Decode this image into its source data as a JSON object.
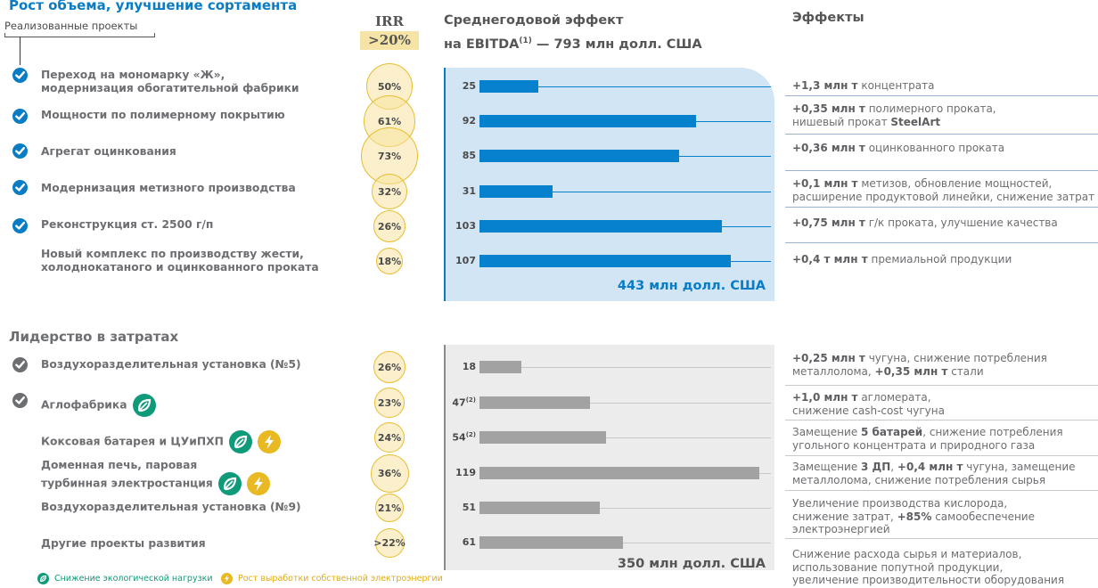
{
  "colors": {
    "accent_blue": "#0a7cc4",
    "bar_blue": "#0581ce",
    "panel_blue": "#d1e5f4",
    "bar_gray": "#a2a2a2",
    "panel_gray": "#ececec",
    "irr_yellow": "#e7bd2e",
    "eco_green": "#0f9a7a",
    "energy_yellow": "#e9b923"
  },
  "header": {
    "irr_title": "IRR",
    "irr_threshold": ">20%",
    "ebitda_line1": "Среднегодовой эффект",
    "ebitda_line2_pre": "на EBITDA",
    "ebitda_footnote": "(1)",
    "ebitda_line2_post": " — 793 млн долл. США",
    "effects_title": "Эффекты"
  },
  "section1": {
    "title": "Рост объема, улучшение сортамента",
    "realized_label": "Реализованные проекты",
    "total": "443 млн долл. США"
  },
  "section2": {
    "title": "Лидерство в затратах",
    "total": "350 млн долл. США"
  },
  "legend": {
    "eco": "Снижение экологической нагрузки",
    "energy": "Рост выработки собственной электроэнергии"
  },
  "chart_data": [
    {
      "type": "bar",
      "title": "Рост объема, улучшение сортамента",
      "xlabel": "Среднегодовой эффект на EBITDA, млн долл. США",
      "orientation": "horizontal",
      "categories": [
        "Переход на мономарку «Ж», модернизация обогатительной фабрики",
        "Мощности по полимерному покрытию",
        "Агрегат оцинкования",
        "Модернизация метизного производства",
        "Реконструкция ст. 2500 г/п",
        "Новый комплекс по производству жести, холоднокатаного и оцинкованного проката"
      ],
      "values": [
        25,
        92,
        85,
        31,
        103,
        107
      ],
      "value_labels": [
        "25",
        "92",
        "85",
        "31",
        "103",
        "107"
      ],
      "irr": [
        "50%",
        "61%",
        "73%",
        "32%",
        "26%",
        "18%"
      ],
      "irr_values": [
        50,
        61,
        73,
        32,
        26,
        18
      ],
      "realized": [
        true,
        true,
        true,
        true,
        true,
        false
      ],
      "total_label": "443 млн долл. США",
      "xlim": [
        0,
        119
      ]
    },
    {
      "type": "bar",
      "title": "Лидерство в затратах",
      "xlabel": "Среднегодовой эффект на EBITDA, млн долл. США",
      "orientation": "horizontal",
      "categories": [
        "Воздухоразделительная установка (№5)",
        "Аглофабрика",
        "Коксовая батарея и ЦУиПХП",
        "Доменная печь, паровая турбинная электростанция",
        "Воздухоразделительная установка (№9)",
        "Другие проекты развития"
      ],
      "values": [
        18,
        47,
        54,
        119,
        51,
        61
      ],
      "value_labels": [
        "18",
        "47",
        "54",
        "119",
        "51",
        "61"
      ],
      "value_footnotes": [
        "",
        "(2)",
        "(2)",
        "",
        "",
        ""
      ],
      "irr": [
        "26%",
        "23%",
        "24%",
        "36%",
        "21%",
        ">22%"
      ],
      "irr_values": [
        26,
        23,
        24,
        36,
        21,
        22
      ],
      "realized": [
        true,
        true,
        false,
        false,
        false,
        false
      ],
      "total_label": "350 млн долл. США",
      "xlim": [
        0,
        119
      ]
    }
  ],
  "projects1": [
    {
      "name_lines": [
        "Переход на мономарку «Ж»,",
        "модернизация обогатительной фабрики"
      ],
      "eco": false,
      "energy": false,
      "effect_html": [
        [
          "b",
          "+1,3 млн т"
        ],
        [
          "t",
          " концентрата"
        ]
      ]
    },
    {
      "name_lines": [
        "Мощности по полимерному покрытию"
      ],
      "eco": false,
      "energy": false,
      "effect_html": [
        [
          "b",
          "+0,35 млн т"
        ],
        [
          "t",
          " полимерного проката,"
        ],
        [
          "br",
          ""
        ],
        [
          "t",
          "нишевый прокат "
        ],
        [
          "b",
          "SteelArt"
        ]
      ]
    },
    {
      "name_lines": [
        "Агрегат оцинкования"
      ],
      "eco": false,
      "energy": false,
      "effect_html": [
        [
          "b",
          "+0,36 млн т"
        ],
        [
          "t",
          " оцинкованного проката"
        ]
      ]
    },
    {
      "name_lines": [
        "Модернизация метизного производства"
      ],
      "eco": false,
      "energy": false,
      "effect_html": [
        [
          "b",
          "+0,1 млн т"
        ],
        [
          "t",
          " метизов, обновление мощностей,"
        ],
        [
          "br",
          ""
        ],
        [
          "t",
          "расширение продуктовой линейки, снижение затрат"
        ]
      ]
    },
    {
      "name_lines": [
        "Реконструкция ст. 2500 г/п"
      ],
      "eco": false,
      "energy": false,
      "effect_html": [
        [
          "b",
          "+0,75 млн т"
        ],
        [
          "t",
          " г/к проката, улучшение качества"
        ]
      ]
    },
    {
      "name_lines": [
        "Новый комплекс по производству жести,",
        "холоднокатаного и оцинкованного проката"
      ],
      "eco": false,
      "energy": false,
      "effect_html": [
        [
          "b",
          "+0,4 т млн т"
        ],
        [
          "t",
          " премиальной продукции"
        ]
      ]
    }
  ],
  "projects2": [
    {
      "name_lines": [
        "Воздухоразделительная установка (№5)"
      ],
      "eco": false,
      "energy": false,
      "effect_html": [
        [
          "b",
          "+0,25 млн т"
        ],
        [
          "t",
          " чугуна, снижение потребления"
        ],
        [
          "br",
          ""
        ],
        [
          "t",
          "металлолома, "
        ],
        [
          "b",
          "+0,35 млн т"
        ],
        [
          "t",
          " стали"
        ]
      ]
    },
    {
      "name_lines": [
        "Аглофабрика"
      ],
      "eco": true,
      "energy": false,
      "effect_html": [
        [
          "b",
          "+1,0 млн т"
        ],
        [
          "t",
          " агломерата,"
        ],
        [
          "br",
          ""
        ],
        [
          "t",
          "снижение cash-cost чугуна"
        ]
      ]
    },
    {
      "name_lines": [
        "Коксовая батарея и ЦУиПХП"
      ],
      "eco": true,
      "energy": true,
      "effect_html": [
        [
          "t",
          "Замещение "
        ],
        [
          "b",
          "5 батарей"
        ],
        [
          "t",
          ", снижение потребления"
        ],
        [
          "br",
          ""
        ],
        [
          "t",
          "угольного концентрата и природного газа"
        ]
      ]
    },
    {
      "name_lines": [
        "Доменная печь, паровая",
        "турбинная электростанция"
      ],
      "eco": true,
      "energy": true,
      "effect_html": [
        [
          "t",
          "Замещение "
        ],
        [
          "b",
          "3 ДП"
        ],
        [
          "t",
          ", "
        ],
        [
          "b",
          "+0,4 млн т"
        ],
        [
          "t",
          " чугуна, замещение"
        ],
        [
          "br",
          ""
        ],
        [
          "t",
          "металлолома, снижение потребления сырья"
        ]
      ]
    },
    {
      "name_lines": [
        "Воздухоразделительная установка (№9)"
      ],
      "eco": false,
      "energy": false,
      "effect_html": [
        [
          "t",
          "Увеличение производства кислорода,"
        ],
        [
          "br",
          ""
        ],
        [
          "t",
          "снижение затрат, "
        ],
        [
          "b",
          "+85%"
        ],
        [
          "t",
          " самообеспечение"
        ],
        [
          "br",
          ""
        ],
        [
          "t",
          "электроэнергией"
        ]
      ]
    },
    {
      "name_lines": [
        "Другие проекты развития"
      ],
      "eco": false,
      "energy": false,
      "effect_html": [
        [
          "t",
          "Снижение расхода сырья и материалов,"
        ],
        [
          "br",
          ""
        ],
        [
          "t",
          "использование попутной продукции,"
        ],
        [
          "br",
          ""
        ],
        [
          "t",
          "увеличение производительности оборудования"
        ]
      ]
    }
  ]
}
